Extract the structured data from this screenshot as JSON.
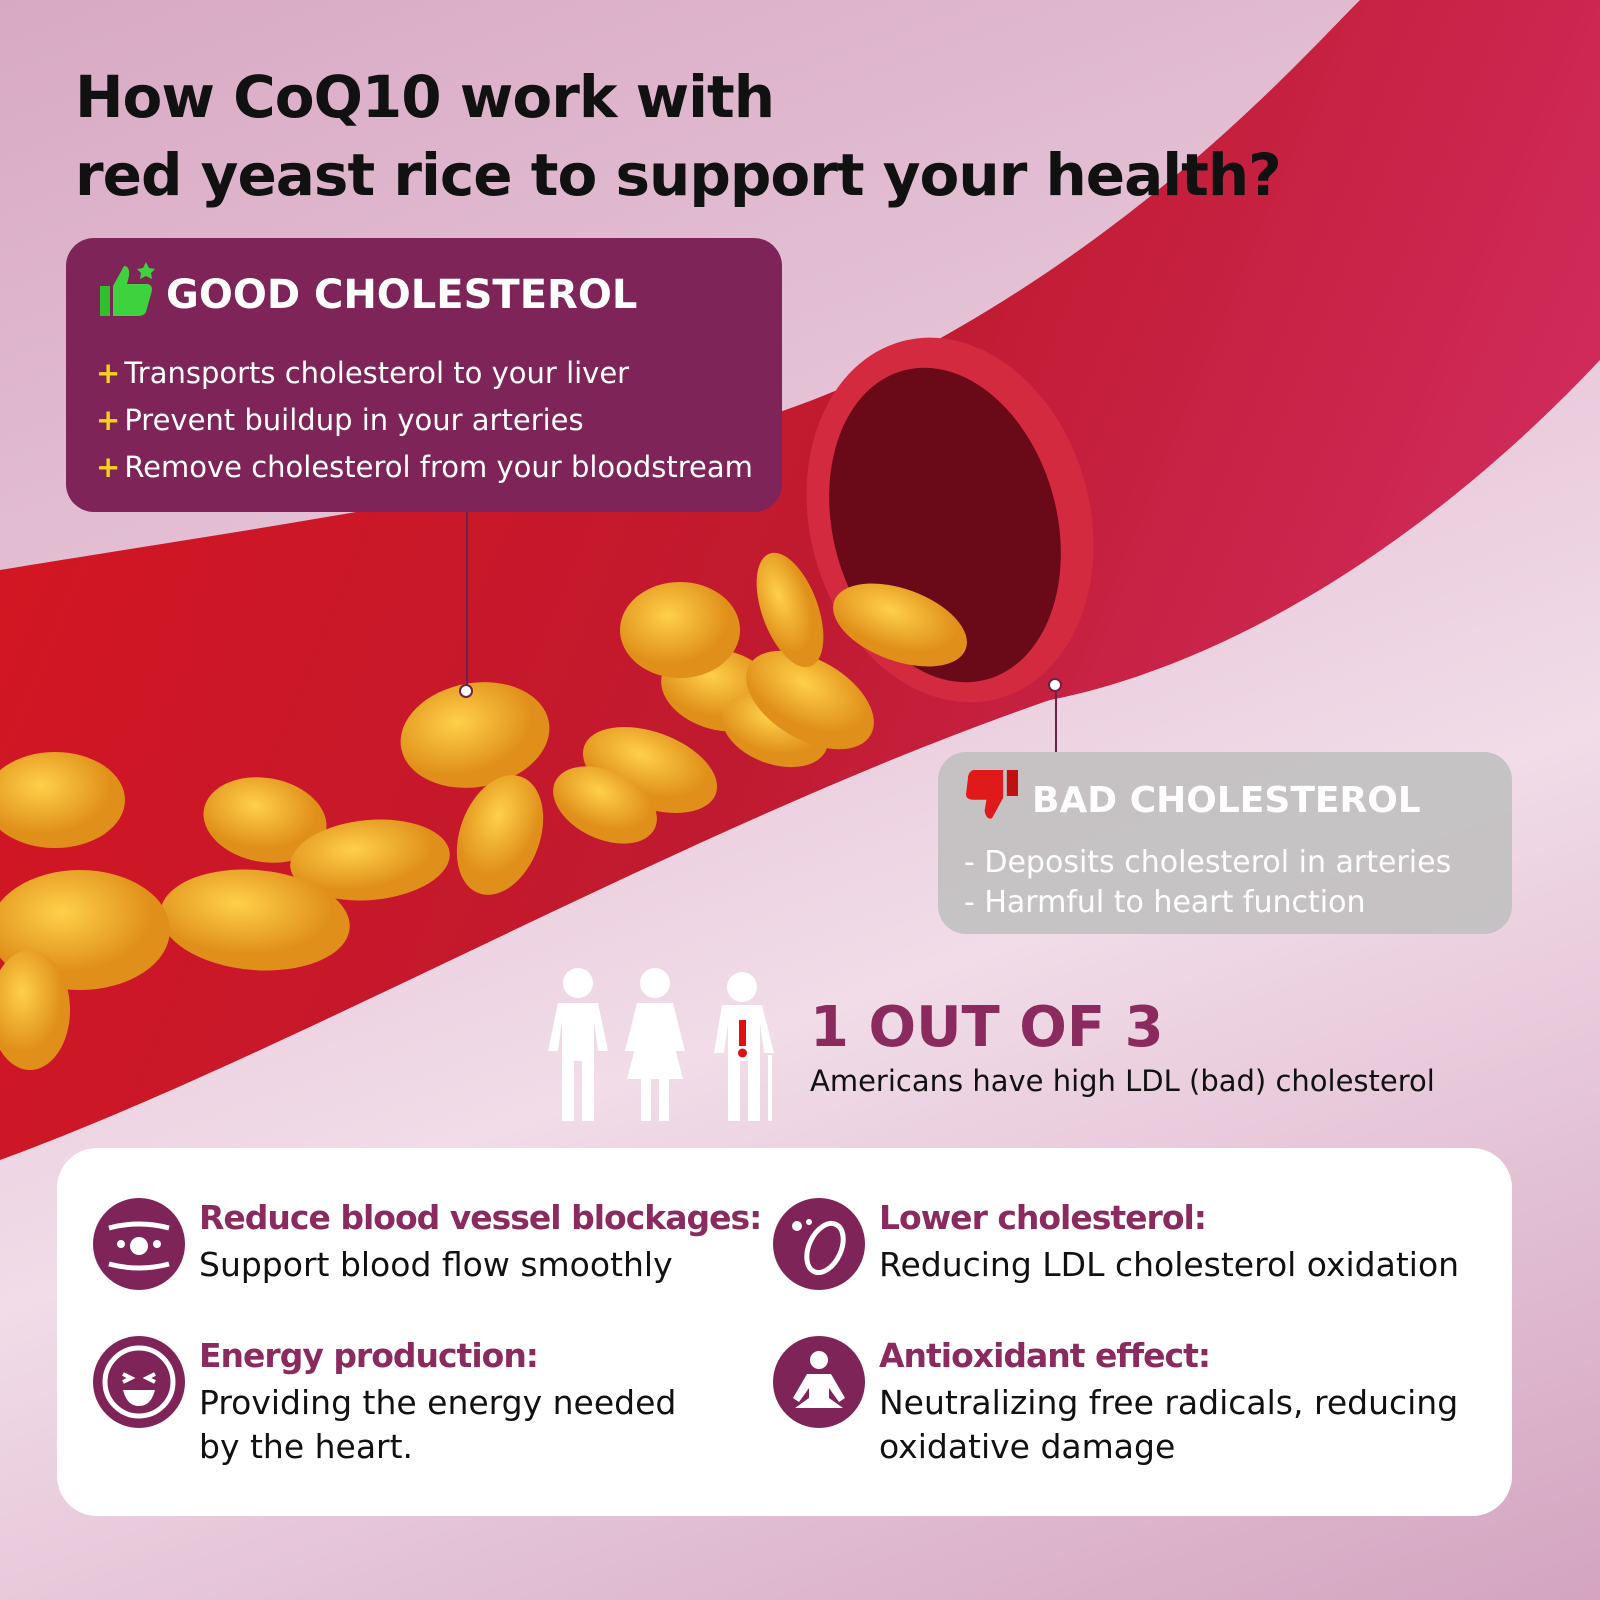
{
  "title": {
    "line1": "How CoQ10 work with",
    "line2": "red yeast rice to support your health?"
  },
  "good": {
    "heading": "GOOD CHOLESTEROL",
    "icon": "thumbs-up-icon",
    "bullets": [
      "Transports cholesterol to your liver",
      "Prevent buildup in your arteries",
      "Remove cholesterol from your bloodstream"
    ],
    "marker": "+"
  },
  "bad": {
    "heading": "BAD CHOLESTEROL",
    "icon": "thumbs-down-icon",
    "bullets": [
      "- Deposits cholesterol in arteries",
      "- Harmful to heart function"
    ]
  },
  "stat": {
    "value": "1 OUT OF 3",
    "text": "Americans have high LDL (bad) cholesterol"
  },
  "benefits": [
    {
      "title": "Reduce blood vessel blockages:",
      "text": "Support blood flow smoothly",
      "icon": "blood-vessel-icon"
    },
    {
      "title": "Lower cholesterol:",
      "text": "Reducing LDL cholesterol oxidation",
      "icon": "blood-cell-icon"
    },
    {
      "title": "Energy production:",
      "text": "Providing the energy needed by the heart.",
      "icon": "happy-face-icon"
    },
    {
      "title": "Antioxidant effect:",
      "text": "Neutralizing free radicals, reducing oxidative damage",
      "icon": "meditation-icon"
    }
  ],
  "colors": {
    "accent": "#7e2458",
    "highlight": "#f5d21c",
    "artery": "#c41a2c",
    "cells": "#f0a820"
  }
}
